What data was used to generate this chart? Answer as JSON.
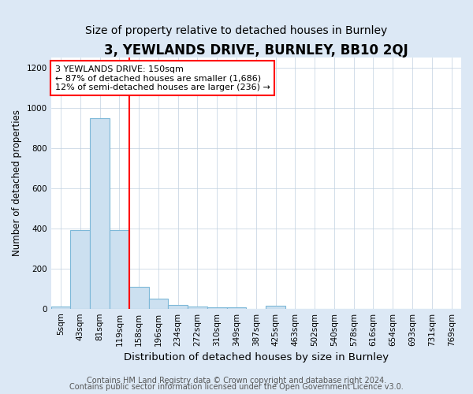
{
  "title": "3, YEWLANDS DRIVE, BURNLEY, BB10 2QJ",
  "subtitle": "Size of property relative to detached houses in Burnley",
  "xlabel": "Distribution of detached houses by size in Burnley",
  "ylabel": "Number of detached properties",
  "categories": [
    "5sqm",
    "43sqm",
    "81sqm",
    "119sqm",
    "158sqm",
    "196sqm",
    "234sqm",
    "272sqm",
    "310sqm",
    "349sqm",
    "387sqm",
    "425sqm",
    "463sqm",
    "502sqm",
    "540sqm",
    "578sqm",
    "616sqm",
    "654sqm",
    "693sqm",
    "731sqm",
    "769sqm"
  ],
  "values": [
    10,
    390,
    950,
    390,
    110,
    50,
    20,
    10,
    5,
    5,
    0,
    15,
    0,
    0,
    0,
    0,
    0,
    0,
    0,
    0,
    0
  ],
  "bar_color": "#cce0f0",
  "bar_edge_color": "#7db8d8",
  "red_line_x": 3.5,
  "annotation_line1": "3 YEWLANDS DRIVE: 150sqm",
  "annotation_line2": "← 87% of detached houses are smaller (1,686)",
  "annotation_line3": "12% of semi-detached houses are larger (236) →",
  "ylim": [
    0,
    1250
  ],
  "yticks": [
    0,
    200,
    400,
    600,
    800,
    1000,
    1200
  ],
  "footnote1": "Contains HM Land Registry data © Crown copyright and database right 2024.",
  "footnote2": "Contains public sector information licensed under the Open Government Licence v3.0.",
  "fig_bg_color": "#dce8f5",
  "plot_bg_color": "#ffffff",
  "grid_color": "#c0d0e0",
  "title_fontsize": 12,
  "subtitle_fontsize": 10,
  "xlabel_fontsize": 9.5,
  "ylabel_fontsize": 8.5,
  "tick_fontsize": 7.5,
  "annotation_fontsize": 8,
  "footnote_fontsize": 7
}
